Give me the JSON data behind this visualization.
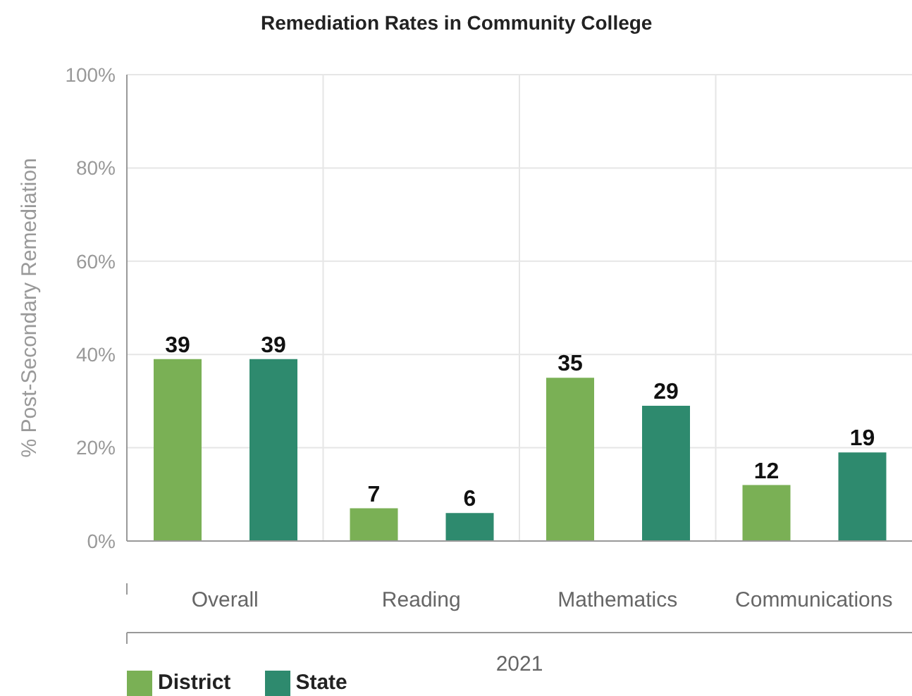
{
  "chart_data": {
    "type": "bar",
    "title": "Remediation Rates in Community College",
    "xlabel": "2021",
    "ylabel": "% Post-Secondary Remediation",
    "categories": [
      "Overall",
      "Reading",
      "Mathematics",
      "Communications"
    ],
    "series": [
      {
        "name": "District",
        "color": "#7ab055",
        "values": [
          39,
          7,
          35,
          12
        ]
      },
      {
        "name": "State",
        "color": "#2e8a6e",
        "values": [
          39,
          6,
          29,
          19
        ]
      }
    ],
    "ylim": [
      0,
      100
    ],
    "yticks": [
      {
        "value": 0,
        "label": "0%"
      },
      {
        "value": 20,
        "label": "20%"
      },
      {
        "value": 40,
        "label": "40%"
      },
      {
        "value": 60,
        "label": "60%"
      },
      {
        "value": 80,
        "label": "80%"
      },
      {
        "value": 100,
        "label": "100%"
      }
    ],
    "grid": true,
    "legend": "bottom left",
    "data_labels": true
  }
}
